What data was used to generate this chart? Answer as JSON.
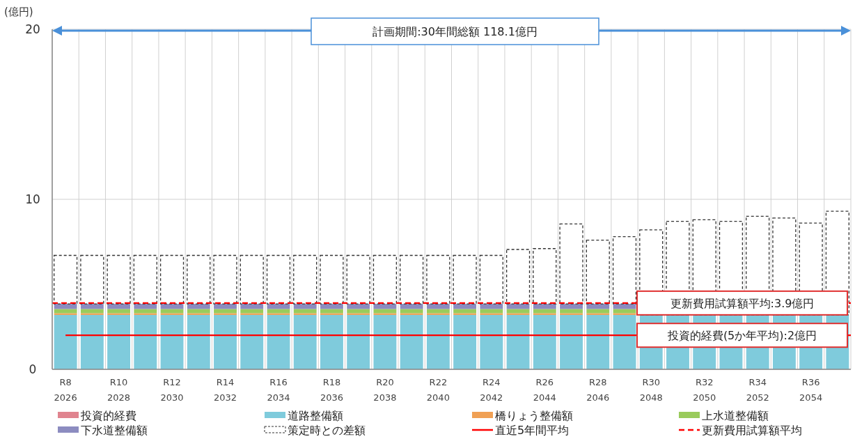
{
  "chart_data": {
    "type": "bar",
    "stacked": true,
    "ylabel": "(億円)",
    "categories": [
      "R8\n2026",
      null,
      "R10\n2028",
      null,
      "R12\n2030",
      null,
      "R14\n2032",
      null,
      "R16\n2034",
      null,
      "R18\n2036",
      null,
      "R20\n2038",
      null,
      "R22\n2040",
      null,
      "R24\n2042",
      null,
      "R26\n2044",
      null,
      "R28\n2046",
      null,
      "R30\n2048",
      null,
      "R32\n2050",
      null,
      "R34\n2052",
      null,
      "R36\n2054",
      null
    ],
    "series": [
      {
        "name": "投資的経費",
        "color": "#e0848f",
        "values": [
          0,
          0,
          0,
          0,
          0,
          0,
          0,
          0,
          0,
          0,
          0,
          0,
          0,
          0,
          0,
          0,
          0,
          0,
          0,
          0,
          0,
          0,
          null,
          null,
          null,
          null,
          null,
          null,
          null,
          null
        ]
      },
      {
        "name": "道路整備額",
        "color": "#7fcbdc",
        "values": [
          3.2,
          3.2,
          3.2,
          3.2,
          3.2,
          3.2,
          3.2,
          3.2,
          3.2,
          3.2,
          3.2,
          3.2,
          3.2,
          3.2,
          3.2,
          3.2,
          3.2,
          3.2,
          3.2,
          3.2,
          3.2,
          3.2,
          3.2,
          3.2,
          3.2,
          3.2,
          3.2,
          3.2,
          3.2,
          3.2
        ]
      },
      {
        "name": "橋りょう整備額",
        "color": "#f0a054",
        "values": [
          0.1,
          0.1,
          0.1,
          0.1,
          0.1,
          0.1,
          0.1,
          0.1,
          0.1,
          0.1,
          0.1,
          0.1,
          0.1,
          0.1,
          0.1,
          0.1,
          0.1,
          0.1,
          0.1,
          0.1,
          0.1,
          0.1,
          null,
          null,
          null,
          null,
          null,
          null,
          null,
          null
        ]
      },
      {
        "name": "上水道整備額",
        "color": "#9acb5c",
        "values": [
          0.25,
          0.25,
          0.25,
          0.25,
          0.25,
          0.25,
          0.25,
          0.25,
          0.25,
          0.25,
          0.25,
          0.25,
          0.25,
          0.25,
          0.25,
          0.25,
          0.25,
          0.25,
          0.25,
          0.25,
          0.25,
          0.25,
          null,
          null,
          null,
          null,
          null,
          null,
          null,
          null
        ]
      },
      {
        "name": "下水道整備額",
        "color": "#8c8cc0",
        "values": [
          0.3,
          0.3,
          0.3,
          0.3,
          0.3,
          0.3,
          0.3,
          0.3,
          0.3,
          0.3,
          0.3,
          0.3,
          0.3,
          0.3,
          0.3,
          0.3,
          0.3,
          0.3,
          0.3,
          0.3,
          0.3,
          0.3,
          null,
          null,
          null,
          null,
          null,
          null,
          null,
          null
        ]
      },
      {
        "name": "策定時との差額",
        "color": "#ffffff",
        "line_style": "dashed",
        "values": [
          2.85,
          2.85,
          2.85,
          2.85,
          2.85,
          2.85,
          2.85,
          2.85,
          2.85,
          2.85,
          2.85,
          2.85,
          2.85,
          2.85,
          2.85,
          2.85,
          2.85,
          3.2,
          3.25,
          4.7,
          3.75,
          3.95,
          5.0,
          5.5,
          5.6,
          5.5,
          5.8,
          5.7,
          5.4,
          6.1
        ]
      }
    ],
    "ylim": [
      0,
      20
    ],
    "yticks": [
      0,
      10,
      20
    ],
    "grid": true,
    "legend": "bottom",
    "ref_lines": [
      {
        "axis": "y",
        "value": 2,
        "label": "直近5年間平均",
        "color": "#ff0000",
        "line_style": "solid"
      },
      {
        "axis": "y",
        "value": 3.9,
        "label": "更新費用試算額平均",
        "color": "#ff0000",
        "line_style": "dashed"
      }
    ],
    "annotations": [
      "計画期間:30年間総額 118.1億円",
      {
        "text": "更新費用試算額平均:3.9億円",
        "y": 3.9
      },
      {
        "text": "投資的経費(5か年平均):2億円",
        "y": 2
      }
    ]
  }
}
